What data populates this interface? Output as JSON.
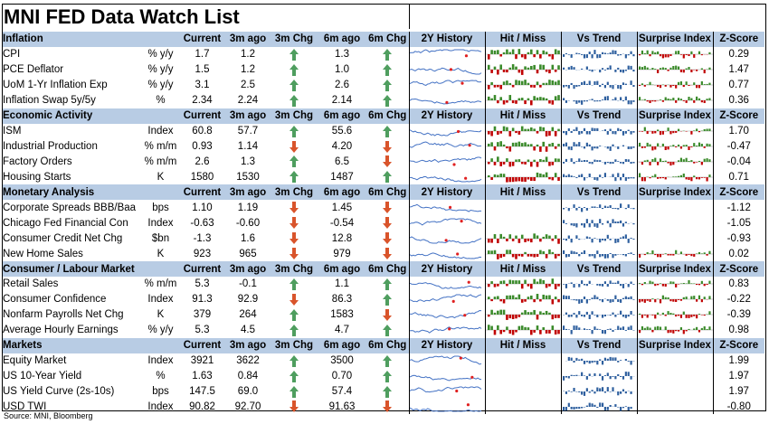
{
  "title": "MNI FED Data Watch List",
  "source": "Source: MNI, Bloomberg",
  "colors": {
    "header_bg": "#b8cce4",
    "arrow_up": "#4f9e5f",
    "arrow_down": "#d9542b",
    "spark_line": "#4472c4",
    "spark_dot": "#e02020",
    "hit": "#3a8a2a",
    "miss": "#c00000",
    "trend": "#2e5f9e",
    "surprise_pos": "#3a8a2a",
    "surprise_neg": "#c00000"
  },
  "sections": [
    {
      "header": {
        "name": "Inflation",
        "current": "Current",
        "ago3": "3m ago",
        "chg3": "3m Chg",
        "ago6": "6m ago",
        "chg6": "6m Chg",
        "history": "2Y History",
        "hitmiss": "Hit / Miss",
        "trend": "Vs Trend",
        "surprise": "Surprise Index",
        "z": "Z-Score"
      },
      "rows": [
        {
          "name": "CPI",
          "unit": "% y/y",
          "current": "1.7",
          "ago3": "1.2",
          "chg3": "up",
          "ago6": "1.3",
          "chg6": "up",
          "z": "0.29"
        },
        {
          "name": "PCE Deflator",
          "unit": "% y/y",
          "current": "1.5",
          "ago3": "1.2",
          "chg3": "up",
          "ago6": "1.0",
          "chg6": "up",
          "z": "1.47"
        },
        {
          "name": "UoM 1-Yr Inflation Exp",
          "unit": "% y/y",
          "current": "3.1",
          "ago3": "2.5",
          "chg3": "up",
          "ago6": "2.6",
          "chg6": "up",
          "z": "0.77"
        },
        {
          "name": "Inflation Swap 5y/5y",
          "unit": "%",
          "current": "2.34",
          "ago3": "2.24",
          "chg3": "up",
          "ago6": "2.14",
          "chg6": "up",
          "z": "0.36"
        }
      ]
    },
    {
      "header": {
        "name": "Economic Activity",
        "current": "Current",
        "ago3": "3m ago",
        "chg3": "3m Chg",
        "ago6": "6m ago",
        "chg6": "6m Chg",
        "history": "2Y History",
        "hitmiss": "Hit / Miss",
        "trend": "Vs Trend",
        "surprise": "Surprise Index",
        "z": "Z-Score"
      },
      "rows": [
        {
          "name": "ISM",
          "unit": "Index",
          "current": "60.8",
          "ago3": "57.7",
          "chg3": "up",
          "ago6": "55.6",
          "chg6": "up",
          "z": "1.70"
        },
        {
          "name": "Industrial Production",
          "unit": "% m/m",
          "current": "0.93",
          "ago3": "1.14",
          "chg3": "down",
          "ago6": "4.20",
          "chg6": "down",
          "z": "-0.47"
        },
        {
          "name": "Factory Orders",
          "unit": "% m/m",
          "current": "2.6",
          "ago3": "1.3",
          "chg3": "up",
          "ago6": "6.5",
          "chg6": "down",
          "z": "-0.04"
        },
        {
          "name": "Housing Starts",
          "unit": "K",
          "current": "1580",
          "ago3": "1530",
          "chg3": "up",
          "ago6": "1487",
          "chg6": "up",
          "z": "0.71"
        }
      ]
    },
    {
      "header": {
        "name": "Monetary Analysis",
        "current": "Current",
        "ago3": "3m ago",
        "chg3": "3m Chg",
        "ago6": "6m ago",
        "chg6": "6m Chg",
        "history": "2Y History",
        "hitmiss": "Hit / Miss",
        "trend": "Vs Trend",
        "surprise": "Surprise Index",
        "z": "Z-Score"
      },
      "rows": [
        {
          "name": "Corporate Spreads BBB/Baa",
          "unit": "bps",
          "current": "1.10",
          "ago3": "1.19",
          "chg3": "down",
          "ago6": "1.45",
          "chg6": "down",
          "z": "-1.12"
        },
        {
          "name": "Chicago Fed Financial Con",
          "unit": "Index",
          "current": "-0.63",
          "ago3": "-0.60",
          "chg3": "down",
          "ago6": "-0.54",
          "chg6": "down",
          "z": "-1.05"
        },
        {
          "name": "Consumer Credit Net Chg",
          "unit": "$bn",
          "current": "-1.3",
          "ago3": "1.6",
          "chg3": "down",
          "ago6": "12.8",
          "chg6": "down",
          "z": "-0.93"
        },
        {
          "name": "New Home Sales",
          "unit": "K",
          "current": "923",
          "ago3": "965",
          "chg3": "down",
          "ago6": "979",
          "chg6": "down",
          "z": "0.02"
        }
      ]
    },
    {
      "header": {
        "name": "Consumer / Labour Market",
        "current": "Current",
        "ago3": "3m ago",
        "chg3": "3m Chg",
        "ago6": "6m ago",
        "chg6": "6m Chg",
        "history": "2Y History",
        "hitmiss": "Hit / Miss",
        "trend": "Vs Trend",
        "surprise": "Surprise Index",
        "z": "Z-Score"
      },
      "rows": [
        {
          "name": "Retail Sales",
          "unit": "% m/m",
          "current": "5.3",
          "ago3": "-0.1",
          "chg3": "up",
          "ago6": "1.1",
          "chg6": "up",
          "z": "0.83"
        },
        {
          "name": "Consumer Confidence",
          "unit": "Index",
          "current": "91.3",
          "ago3": "92.9",
          "chg3": "down",
          "ago6": "86.3",
          "chg6": "up",
          "z": "-0.22"
        },
        {
          "name": "Nonfarm Payrolls Net Chg",
          "unit": "K",
          "current": "379",
          "ago3": "264",
          "chg3": "up",
          "ago6": "1583",
          "chg6": "down",
          "z": "-0.39"
        },
        {
          "name": "Average Hourly Earnings",
          "unit": "% y/y",
          "current": "5.3",
          "ago3": "4.5",
          "chg3": "up",
          "ago6": "4.7",
          "chg6": "up",
          "z": "0.98"
        }
      ]
    },
    {
      "header": {
        "name": "Markets",
        "current": "Current",
        "ago3": "3m ago",
        "chg3": "3m Chg",
        "ago6": "6m ago",
        "chg6": "6m Chg",
        "history": "2Y History",
        "hitmiss": "Hit / Miss",
        "trend": "Vs Trend",
        "surprise": "Surprise Index",
        "z": "Z-Score"
      },
      "rows": [
        {
          "name": "Equity Market",
          "unit": "Index",
          "current": "3921",
          "ago3": "3622",
          "chg3": "up",
          "ago6": "3500",
          "chg6": "up",
          "z": "1.99"
        },
        {
          "name": "US 10-Year Yield",
          "unit": "%",
          "current": "1.63",
          "ago3": "0.84",
          "chg3": "up",
          "ago6": "0.70",
          "chg6": "up",
          "z": "1.97"
        },
        {
          "name": "US Yield Curve (2s-10s)",
          "unit": "bps",
          "current": "147.5",
          "ago3": "69.0",
          "chg3": "up",
          "ago6": "57.4",
          "chg6": "up",
          "z": "1.97"
        },
        {
          "name": "USD TWI",
          "unit": "Index",
          "current": "90.82",
          "ago3": "92.70",
          "chg3": "down",
          "ago6": "91.63",
          "chg6": "down",
          "z": "-0.80"
        }
      ]
    }
  ]
}
